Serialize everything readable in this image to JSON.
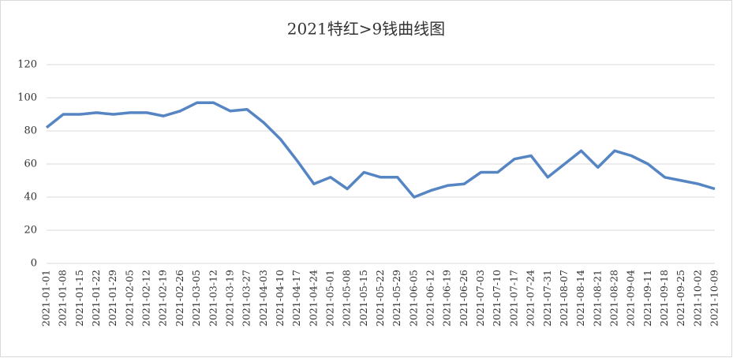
{
  "chart_data": {
    "type": "line",
    "title": "2021特红>9钱曲线图",
    "categories": [
      "2021-01-01",
      "2021-01-08",
      "2021-01-15",
      "2021-01-22",
      "2021-01-29",
      "2021-02-05",
      "2021-02-12",
      "2021-02-19",
      "2021-02-26",
      "2021-03-05",
      "2021-03-12",
      "2021-03-19",
      "2021-03-27",
      "2021-04-03",
      "2021-04-10",
      "2021-04-17",
      "2021-04-24",
      "2021-05-01",
      "2021-05-08",
      "2021-05-15",
      "2021-05-22",
      "2021-05-29",
      "2021-06-05",
      "2021-06-12",
      "2021-06-19",
      "2021-06-26",
      "2021-07-03",
      "2021-07-10",
      "2021-07-17",
      "2021-07-24",
      "2021-07-31",
      "2021-08-07",
      "2021-08-14",
      "2021-08-21",
      "2021-08-28",
      "2021-09-04",
      "2021-09-11",
      "2021-09-18",
      "2021-09-25",
      "2021-10-02",
      "2021-10-09"
    ],
    "values": [
      82,
      90,
      90,
      91,
      90,
      91,
      91,
      89,
      92,
      97,
      97,
      92,
      93,
      85,
      75,
      62,
      48,
      52,
      45,
      55,
      52,
      52,
      40,
      44,
      47,
      48,
      55,
      55,
      63,
      65,
      52,
      60,
      68,
      58,
      68,
      65,
      60,
      52,
      50,
      48,
      45
    ],
    "color": "#5585c3",
    "ylim": [
      0,
      120
    ],
    "yticks": [
      0,
      20,
      40,
      60,
      80,
      100,
      120
    ],
    "grid": true
  }
}
